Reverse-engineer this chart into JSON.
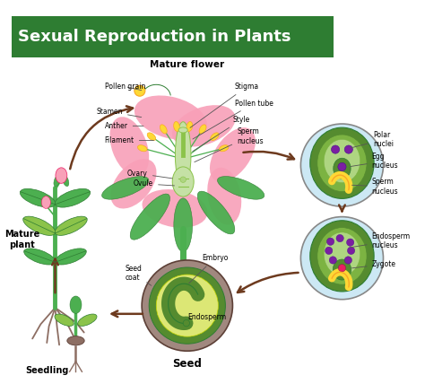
{
  "title": "Sexual Reproduction in Plants",
  "title_bg": "#2e7d32",
  "title_color": "white",
  "title_fontsize": 13,
  "bg_color": "#ffffff",
  "labels": {
    "mature_flower": "Mature flower",
    "pollen_grain": "Pollen grain",
    "stamen": "Stamen",
    "anther": "Anther",
    "filament": "Filament",
    "stigma": "Stigma",
    "pollen_tube": "Pollen tube",
    "style": "Style",
    "sperm_nucleus_top": "Sperm\nnucleus",
    "ovary": "Ovary",
    "ovule": "Ovule",
    "polar_nuclei": "Polar\nnuclei",
    "egg_nucleus": "Egg\nnucleus",
    "sperm_nucleus_bottom": "Sperm\nnucleus",
    "endosperm_nucleus": "Endosperm\nnucleus",
    "zygote": "Zygote",
    "embryo": "Embryo",
    "seed_coat": "Seed\ncoat",
    "endosperm": "Endosperm",
    "seed": "Seed",
    "seedling": "Seedling",
    "mature_plant": "Mature\nplant"
  },
  "colors": {
    "pink_petal": "#f8a0b8",
    "green_stem": "#4caf50",
    "dark_green": "#2e7d32",
    "light_green": "#8bc34a",
    "yellow": "#fdd835",
    "yellow_dark": "#f9a825",
    "light_blue": "#cce8f4",
    "cell_green": "#558b2f",
    "light_cell": "#aed581",
    "very_light_green": "#dcedc8",
    "purple_dot": "#7b1fa2",
    "purple_edge": "#4a148c",
    "brown_arrow": "#6d3a1e",
    "brown_seed": "#8d6e63",
    "seed_dark": "#5d4037",
    "root_color": "#8d6e63"
  }
}
